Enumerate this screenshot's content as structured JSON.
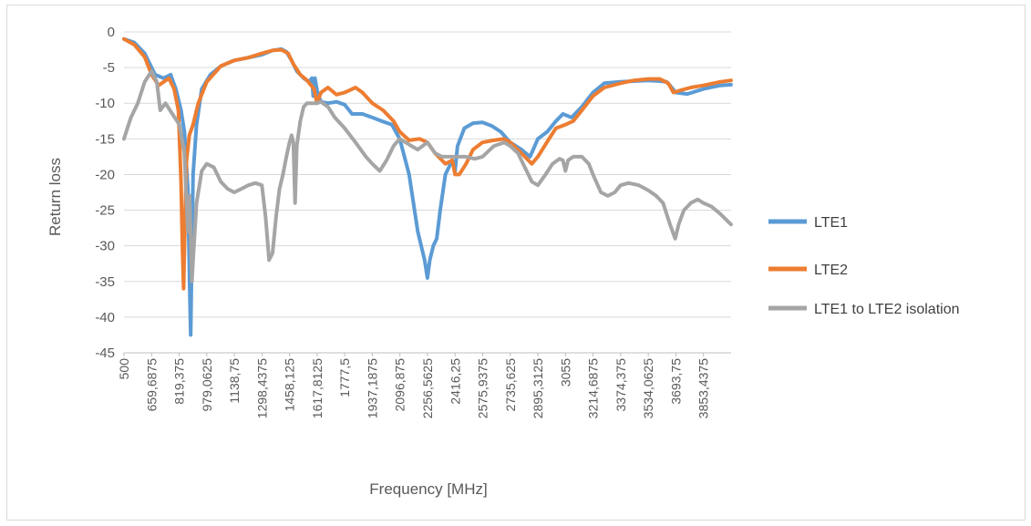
{
  "chart_data": {
    "type": "line",
    "title": "",
    "xlabel": "Frequency [MHz]",
    "ylabel": "Return loss",
    "ylim": [
      -45,
      0
    ],
    "yticks": [
      "0",
      "-5",
      "-10",
      "-15",
      "-20",
      "-25",
      "-30",
      "-35",
      "-40",
      "-45"
    ],
    "xlim": [
      500,
      4013.3125
    ],
    "xticks": [
      "500",
      "659,6875",
      "819,375",
      "979,0625",
      "1138,75",
      "1298,4375",
      "1458,125",
      "1617,8125",
      "1777,5",
      "1937,1875",
      "2096,875",
      "2256,5625",
      "2416,25",
      "2575,9375",
      "2735,625",
      "2895,3125",
      "3055",
      "3214,6875",
      "3374,375",
      "3534,0625",
      "3693,75",
      "3853,4375"
    ],
    "grid": "horizontal",
    "legend_position": "right",
    "series": [
      {
        "name": "LTE1",
        "color": "#5b9bd5",
        "points": [
          [
            500,
            -1
          ],
          [
            560,
            -1.5
          ],
          [
            620,
            -3
          ],
          [
            680,
            -6
          ],
          [
            730,
            -6.5
          ],
          [
            770,
            -6
          ],
          [
            800,
            -8
          ],
          [
            830,
            -11
          ],
          [
            850,
            -14
          ],
          [
            870,
            -22
          ],
          [
            882,
            -38
          ],
          [
            886,
            -42.5
          ],
          [
            890,
            -36
          ],
          [
            900,
            -20
          ],
          [
            920,
            -13
          ],
          [
            950,
            -8
          ],
          [
            1000,
            -6
          ],
          [
            1060,
            -4.8
          ],
          [
            1138,
            -4
          ],
          [
            1220,
            -3.6
          ],
          [
            1298,
            -3.2
          ],
          [
            1360,
            -2.6
          ],
          [
            1410,
            -2.4
          ],
          [
            1440,
            -2.8
          ],
          [
            1470,
            -4
          ],
          [
            1500,
            -5.5
          ],
          [
            1540,
            -6.5
          ],
          [
            1570,
            -7
          ],
          [
            1588,
            -6.5
          ],
          [
            1595,
            -9
          ],
          [
            1605,
            -6.5
          ],
          [
            1620,
            -8.5
          ],
          [
            1640,
            -9.8
          ],
          [
            1680,
            -10
          ],
          [
            1730,
            -9.8
          ],
          [
            1777,
            -10.2
          ],
          [
            1820,
            -11.5
          ],
          [
            1880,
            -11.5
          ],
          [
            1937,
            -12
          ],
          [
            1990,
            -12.5
          ],
          [
            2050,
            -13
          ],
          [
            2096,
            -15
          ],
          [
            2150,
            -20
          ],
          [
            2200,
            -28
          ],
          [
            2240,
            -32
          ],
          [
            2256,
            -34.5
          ],
          [
            2270,
            -32
          ],
          [
            2290,
            -30
          ],
          [
            2310,
            -29
          ],
          [
            2330,
            -25
          ],
          [
            2360,
            -20
          ],
          [
            2400,
            -18
          ],
          [
            2416,
            -19.5
          ],
          [
            2430,
            -16
          ],
          [
            2470,
            -13.5
          ],
          [
            2520,
            -12.8
          ],
          [
            2575,
            -12.7
          ],
          [
            2630,
            -13.2
          ],
          [
            2680,
            -14
          ],
          [
            2735,
            -15.5
          ],
          [
            2800,
            -16.5
          ],
          [
            2850,
            -17.5
          ],
          [
            2895,
            -15
          ],
          [
            2950,
            -14
          ],
          [
            3000,
            -12.5
          ],
          [
            3040,
            -11.5
          ],
          [
            3090,
            -12
          ],
          [
            3150,
            -10.5
          ],
          [
            3214,
            -8.5
          ],
          [
            3280,
            -7.2
          ],
          [
            3374,
            -7
          ],
          [
            3450,
            -6.9
          ],
          [
            3534,
            -6.8
          ],
          [
            3600,
            -6.9
          ],
          [
            3640,
            -7
          ],
          [
            3660,
            -7.5
          ],
          [
            3693,
            -8.5
          ],
          [
            3760,
            -8.7
          ],
          [
            3853,
            -8
          ],
          [
            3950,
            -7.5
          ],
          [
            4013,
            -7.4
          ]
        ]
      },
      {
        "name": "LTE2",
        "color": "#ed7d31",
        "points": [
          [
            500,
            -1
          ],
          [
            560,
            -1.8
          ],
          [
            620,
            -3.5
          ],
          [
            660,
            -6
          ],
          [
            700,
            -7.5
          ],
          [
            730,
            -7
          ],
          [
            760,
            -6.5
          ],
          [
            790,
            -8
          ],
          [
            815,
            -11
          ],
          [
            830,
            -21
          ],
          [
            838,
            -30
          ],
          [
            845,
            -36
          ],
          [
            852,
            -28
          ],
          [
            862,
            -18
          ],
          [
            878,
            -14.5
          ],
          [
            900,
            -13
          ],
          [
            930,
            -10
          ],
          [
            979,
            -7
          ],
          [
            1060,
            -4.8
          ],
          [
            1138,
            -4
          ],
          [
            1220,
            -3.6
          ],
          [
            1298,
            -3
          ],
          [
            1360,
            -2.6
          ],
          [
            1410,
            -2.5
          ],
          [
            1450,
            -3
          ],
          [
            1480,
            -4.5
          ],
          [
            1520,
            -6
          ],
          [
            1560,
            -6.8
          ],
          [
            1600,
            -8
          ],
          [
            1617,
            -10
          ],
          [
            1640,
            -8.5
          ],
          [
            1680,
            -7.8
          ],
          [
            1730,
            -8.8
          ],
          [
            1777,
            -8.5
          ],
          [
            1840,
            -7.8
          ],
          [
            1880,
            -8.5
          ],
          [
            1937,
            -10
          ],
          [
            2000,
            -11
          ],
          [
            2060,
            -12.5
          ],
          [
            2096,
            -14
          ],
          [
            2150,
            -15.2
          ],
          [
            2210,
            -15
          ],
          [
            2256,
            -15.5
          ],
          [
            2300,
            -17
          ],
          [
            2360,
            -18.5
          ],
          [
            2400,
            -18
          ],
          [
            2416,
            -20
          ],
          [
            2440,
            -20
          ],
          [
            2480,
            -18.5
          ],
          [
            2520,
            -16.5
          ],
          [
            2575,
            -15.5
          ],
          [
            2640,
            -15.2
          ],
          [
            2700,
            -15
          ],
          [
            2735,
            -15.5
          ],
          [
            2800,
            -17
          ],
          [
            2860,
            -18.5
          ],
          [
            2895,
            -17.5
          ],
          [
            2960,
            -15
          ],
          [
            3000,
            -13.5
          ],
          [
            3055,
            -13
          ],
          [
            3100,
            -12.5
          ],
          [
            3150,
            -11
          ],
          [
            3214,
            -9
          ],
          [
            3280,
            -7.8
          ],
          [
            3374,
            -7.2
          ],
          [
            3450,
            -6.8
          ],
          [
            3534,
            -6.6
          ],
          [
            3600,
            -6.6
          ],
          [
            3650,
            -7.2
          ],
          [
            3680,
            -8.5
          ],
          [
            3720,
            -8.2
          ],
          [
            3780,
            -7.8
          ],
          [
            3853,
            -7.5
          ],
          [
            3950,
            -7
          ],
          [
            4013,
            -6.8
          ]
        ]
      },
      {
        "name": "LTE1 to LTE2 isolation",
        "color": "#a5a5a5",
        "points": [
          [
            500,
            -15
          ],
          [
            540,
            -12
          ],
          [
            580,
            -10
          ],
          [
            620,
            -7
          ],
          [
            660,
            -5.5
          ],
          [
            690,
            -7
          ],
          [
            710,
            -11
          ],
          [
            740,
            -10
          ],
          [
            780,
            -11.5
          ],
          [
            820,
            -13
          ],
          [
            850,
            -17
          ],
          [
            870,
            -28
          ],
          [
            880,
            -23
          ],
          [
            893,
            -35
          ],
          [
            900,
            -32
          ],
          [
            920,
            -24
          ],
          [
            950,
            -19.5
          ],
          [
            979,
            -18.5
          ],
          [
            1020,
            -19
          ],
          [
            1060,
            -21
          ],
          [
            1100,
            -22
          ],
          [
            1138,
            -22.5
          ],
          [
            1180,
            -22
          ],
          [
            1220,
            -21.5
          ],
          [
            1260,
            -21.2
          ],
          [
            1298,
            -21.5
          ],
          [
            1320,
            -26
          ],
          [
            1340,
            -32
          ],
          [
            1360,
            -31
          ],
          [
            1380,
            -26
          ],
          [
            1400,
            -22
          ],
          [
            1420,
            -20
          ],
          [
            1440,
            -17.5
          ],
          [
            1458,
            -15.5
          ],
          [
            1470,
            -14.5
          ],
          [
            1480,
            -15.5
          ],
          [
            1490,
            -24
          ],
          [
            1500,
            -16
          ],
          [
            1520,
            -12.5
          ],
          [
            1540,
            -10.5
          ],
          [
            1560,
            -10
          ],
          [
            1617,
            -10
          ],
          [
            1640,
            -9.8
          ],
          [
            1680,
            -10.5
          ],
          [
            1720,
            -12
          ],
          [
            1777,
            -13.5
          ],
          [
            1840,
            -15.5
          ],
          [
            1900,
            -17.5
          ],
          [
            1937,
            -18.5
          ],
          [
            1980,
            -19.5
          ],
          [
            2020,
            -18
          ],
          [
            2060,
            -16
          ],
          [
            2096,
            -15
          ],
          [
            2150,
            -15.8
          ],
          [
            2200,
            -16.5
          ],
          [
            2256,
            -15.5
          ],
          [
            2300,
            -17
          ],
          [
            2340,
            -17.5
          ],
          [
            2416,
            -17.5
          ],
          [
            2480,
            -17.5
          ],
          [
            2530,
            -17.8
          ],
          [
            2575,
            -17.5
          ],
          [
            2640,
            -16
          ],
          [
            2700,
            -15.5
          ],
          [
            2735,
            -16
          ],
          [
            2780,
            -17
          ],
          [
            2820,
            -19
          ],
          [
            2860,
            -21
          ],
          [
            2895,
            -21.5
          ],
          [
            2940,
            -20
          ],
          [
            2980,
            -18.5
          ],
          [
            3020,
            -17.8
          ],
          [
            3040,
            -18
          ],
          [
            3055,
            -19.5
          ],
          [
            3070,
            -18
          ],
          [
            3100,
            -17.5
          ],
          [
            3150,
            -17.5
          ],
          [
            3190,
            -18.5
          ],
          [
            3214,
            -20
          ],
          [
            3260,
            -22.5
          ],
          [
            3300,
            -23
          ],
          [
            3340,
            -22.5
          ],
          [
            3374,
            -21.5
          ],
          [
            3420,
            -21.2
          ],
          [
            3480,
            -21.5
          ],
          [
            3534,
            -22.2
          ],
          [
            3580,
            -23
          ],
          [
            3620,
            -24
          ],
          [
            3660,
            -27
          ],
          [
            3690,
            -29
          ],
          [
            3710,
            -27
          ],
          [
            3740,
            -25
          ],
          [
            3780,
            -24
          ],
          [
            3820,
            -23.5
          ],
          [
            3853,
            -24
          ],
          [
            3900,
            -24.5
          ],
          [
            3950,
            -25.5
          ],
          [
            4013,
            -27
          ]
        ]
      }
    ]
  }
}
